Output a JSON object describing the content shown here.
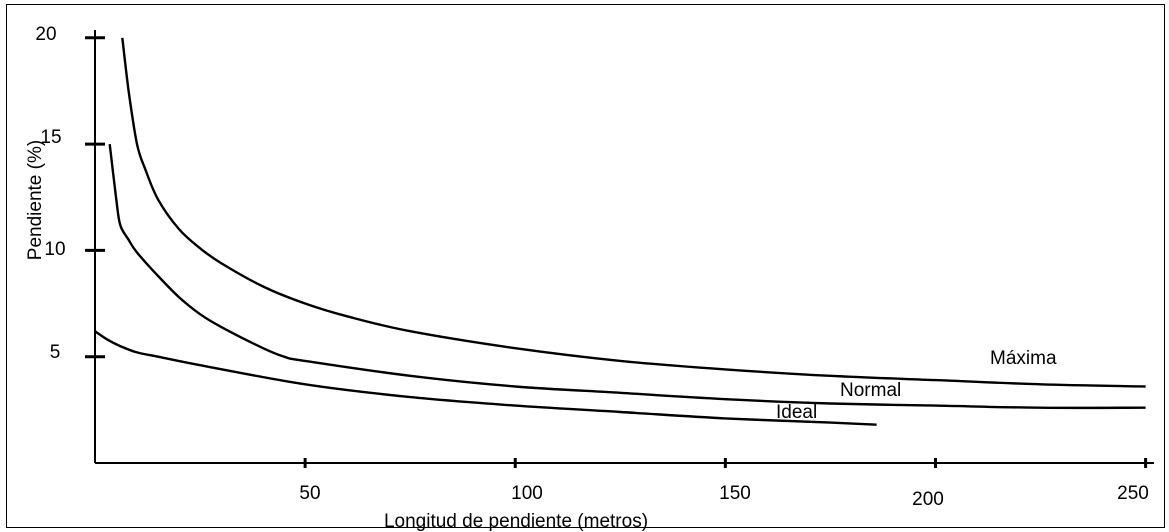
{
  "chart_data": {
    "type": "line",
    "xlabel": "Longitud de pendiente (metros)",
    "ylabel": "Pendiente (%)",
    "xlim": [
      0,
      252
    ],
    "ylim": [
      0,
      21
    ],
    "x_ticks": [
      {
        "value": 50,
        "label": "50"
      },
      {
        "value": 100,
        "label": "100"
      },
      {
        "value": 150,
        "label": "150"
      },
      {
        "value": 200,
        "label": "200"
      },
      {
        "value": 250,
        "label": "250"
      }
    ],
    "y_ticks": [
      {
        "value": 5,
        "label": "5"
      },
      {
        "value": 10,
        "label": "10"
      },
      {
        "value": 15,
        "label": "15"
      },
      {
        "value": 20,
        "label": "20"
      }
    ],
    "series": [
      {
        "name": "Máxima",
        "x": [
          6.5,
          8,
          10,
          12,
          15,
          20,
          25,
          30,
          40,
          50,
          60,
          75,
          100,
          125,
          150,
          175,
          200,
          225,
          250
        ],
        "y": [
          20.0,
          17.5,
          15.0,
          13.8,
          12.4,
          11.0,
          10.1,
          9.4,
          8.3,
          7.5,
          6.9,
          6.2,
          5.4,
          4.8,
          4.4,
          4.1,
          3.9,
          3.7,
          3.6
        ]
      },
      {
        "name": "Normal",
        "x": [
          3.5,
          5,
          6,
          8,
          10,
          15,
          20,
          25,
          30,
          40,
          45,
          50,
          75,
          100,
          125,
          150,
          175,
          200,
          225,
          250
        ],
        "y": [
          15.0,
          12.5,
          11.2,
          10.5,
          9.9,
          8.8,
          7.8,
          7.0,
          6.4,
          5.4,
          5.0,
          4.8,
          4.1,
          3.6,
          3.3,
          3.0,
          2.8,
          2.7,
          2.6,
          2.6
        ]
      },
      {
        "name": "Ideal",
        "x": [
          0,
          3,
          6,
          10,
          15,
          25,
          50,
          75,
          100,
          125,
          150,
          175,
          186
        ],
        "y": [
          6.2,
          5.8,
          5.5,
          5.2,
          5.0,
          4.6,
          3.7,
          3.1,
          2.7,
          2.4,
          2.1,
          1.9,
          1.8
        ]
      }
    ]
  }
}
